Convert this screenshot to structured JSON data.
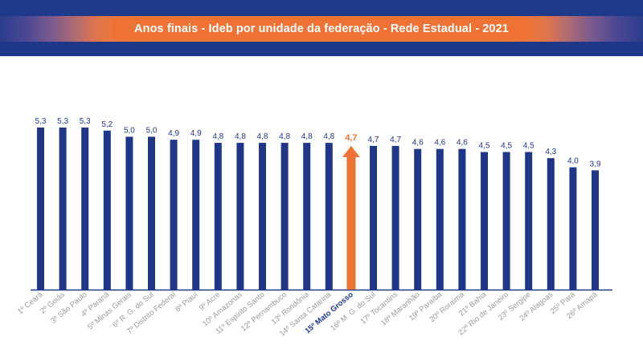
{
  "title": "Anos finais - Ideb por unidade da federação - Rede Estadual - 2021",
  "colors": {
    "bar": "#1e3788",
    "highlight": "#ee7234",
    "label": "#1e3788",
    "highlight_label": "#ee7234",
    "tick": "#9a9a9a",
    "axis": "#1e3788",
    "header": "#1e3788"
  },
  "chart_data": {
    "type": "bar",
    "title": "Anos finais - Ideb por unidade da federação - Rede Estadual - 2021",
    "categories": [
      "1º Ceará",
      "2º Goiás",
      "3º São Paulo",
      "4º Paraná",
      "5º Minas Gerais",
      "6º R. G. do Sul",
      "7º Distrito Federal",
      "8º Piauí",
      "9º Acre",
      "10º Amazonas",
      "11º Espírito Santo",
      "12º Pernambuco",
      "13º Rondônia",
      "14º Santa Catarina",
      "15º Mato Grosso",
      "16º M. G. do Sul",
      "17º Tocantins",
      "18º Maranhão",
      "19º Paraíba",
      "20º Roraima",
      "21º Bahia",
      "22º Rio de Janeiro",
      "23º Sergipe",
      "24º Alagoas",
      "25º Pará",
      "26º Amapá"
    ],
    "values": [
      5.3,
      5.3,
      5.3,
      5.2,
      5.0,
      5.0,
      4.9,
      4.9,
      4.8,
      4.8,
      4.8,
      4.8,
      4.8,
      4.8,
      4.7,
      4.7,
      4.7,
      4.6,
      4.6,
      4.6,
      4.5,
      4.5,
      4.5,
      4.3,
      4.0,
      3.9
    ],
    "value_labels": [
      "5,3",
      "5,3",
      "5,3",
      "5,2",
      "5,0",
      "5,0",
      "4,9",
      "4,9",
      "4,8",
      "4,8",
      "4,8",
      "4,8",
      "4,8",
      "4,8",
      "4,7",
      "4,7",
      "4,7",
      "4,6",
      "4,6",
      "4,6",
      "4,5",
      "4,5",
      "4,5",
      "4,3",
      "4,0",
      "3,9"
    ],
    "highlight_category": "15º Mato Grosso",
    "xlabel": "",
    "ylabel": "",
    "ylim": [
      0,
      5.3
    ],
    "grid": false,
    "legend": "none"
  }
}
